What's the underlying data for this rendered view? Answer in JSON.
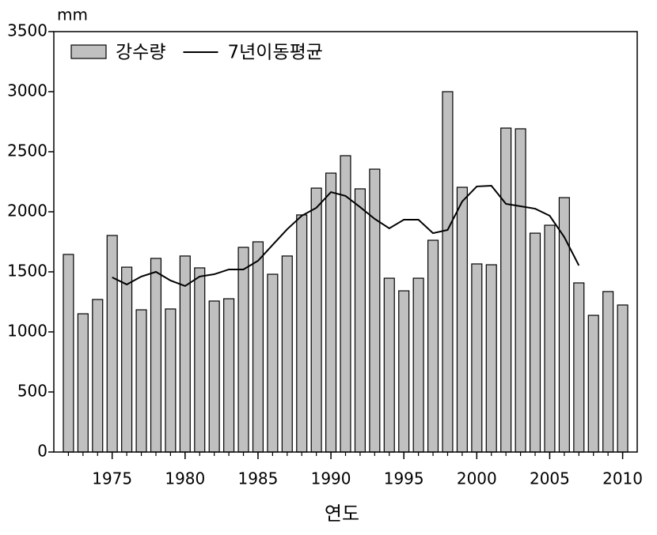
{
  "chart_data": {
    "type": "bar",
    "y_label": "mm",
    "x_label": "연도",
    "x": [
      1972,
      1973,
      1974,
      1975,
      1976,
      1977,
      1978,
      1979,
      1980,
      1981,
      1982,
      1983,
      1984,
      1985,
      1986,
      1987,
      1988,
      1989,
      1990,
      1991,
      1992,
      1993,
      1994,
      1995,
      1996,
      1997,
      1998,
      1999,
      2000,
      2001,
      2002,
      2003,
      2004,
      2005,
      2006,
      2007,
      2008,
      2009,
      2010
    ],
    "series": [
      {
        "name": "강수량",
        "type": "bar",
        "color": "#c0c0c0",
        "values": [
          1645,
          1151,
          1270,
          1803,
          1539,
          1184,
          1612,
          1191,
          1632,
          1533,
          1257,
          1276,
          1704,
          1750,
          1480,
          1632,
          1974,
          2197,
          2322,
          2467,
          2191,
          2355,
          1447,
          1342,
          1447,
          1763,
          3000,
          2204,
          1566,
          1559,
          2697,
          2691,
          1822,
          1888,
          2118,
          1408,
          1138,
          1336,
          1224
        ]
      },
      {
        "name": "7년이동평균",
        "type": "line",
        "color": "#000000",
        "values": [
          null,
          null,
          null,
          1454,
          1395,
          1461,
          1500,
          1428,
          1382,
          1461,
          1480,
          1520,
          1520,
          1592,
          1724,
          1855,
          1967,
          2033,
          2164,
          2132,
          2039,
          1941,
          1862,
          1934,
          1934,
          1822,
          1849,
          2086,
          2211,
          2217,
          2066,
          2046,
          2026,
          1967,
          1789,
          1553,
          null,
          null,
          null
        ]
      }
    ],
    "xlim": [
      1971,
      2011
    ],
    "xticks": [
      1975,
      1980,
      1985,
      1990,
      1995,
      2000,
      2005,
      2010
    ],
    "ylim": [
      0,
      3500
    ],
    "yticks": [
      0,
      500,
      1000,
      1500,
      2000,
      2500,
      3000,
      3500
    ],
    "legend": "upper-left"
  }
}
